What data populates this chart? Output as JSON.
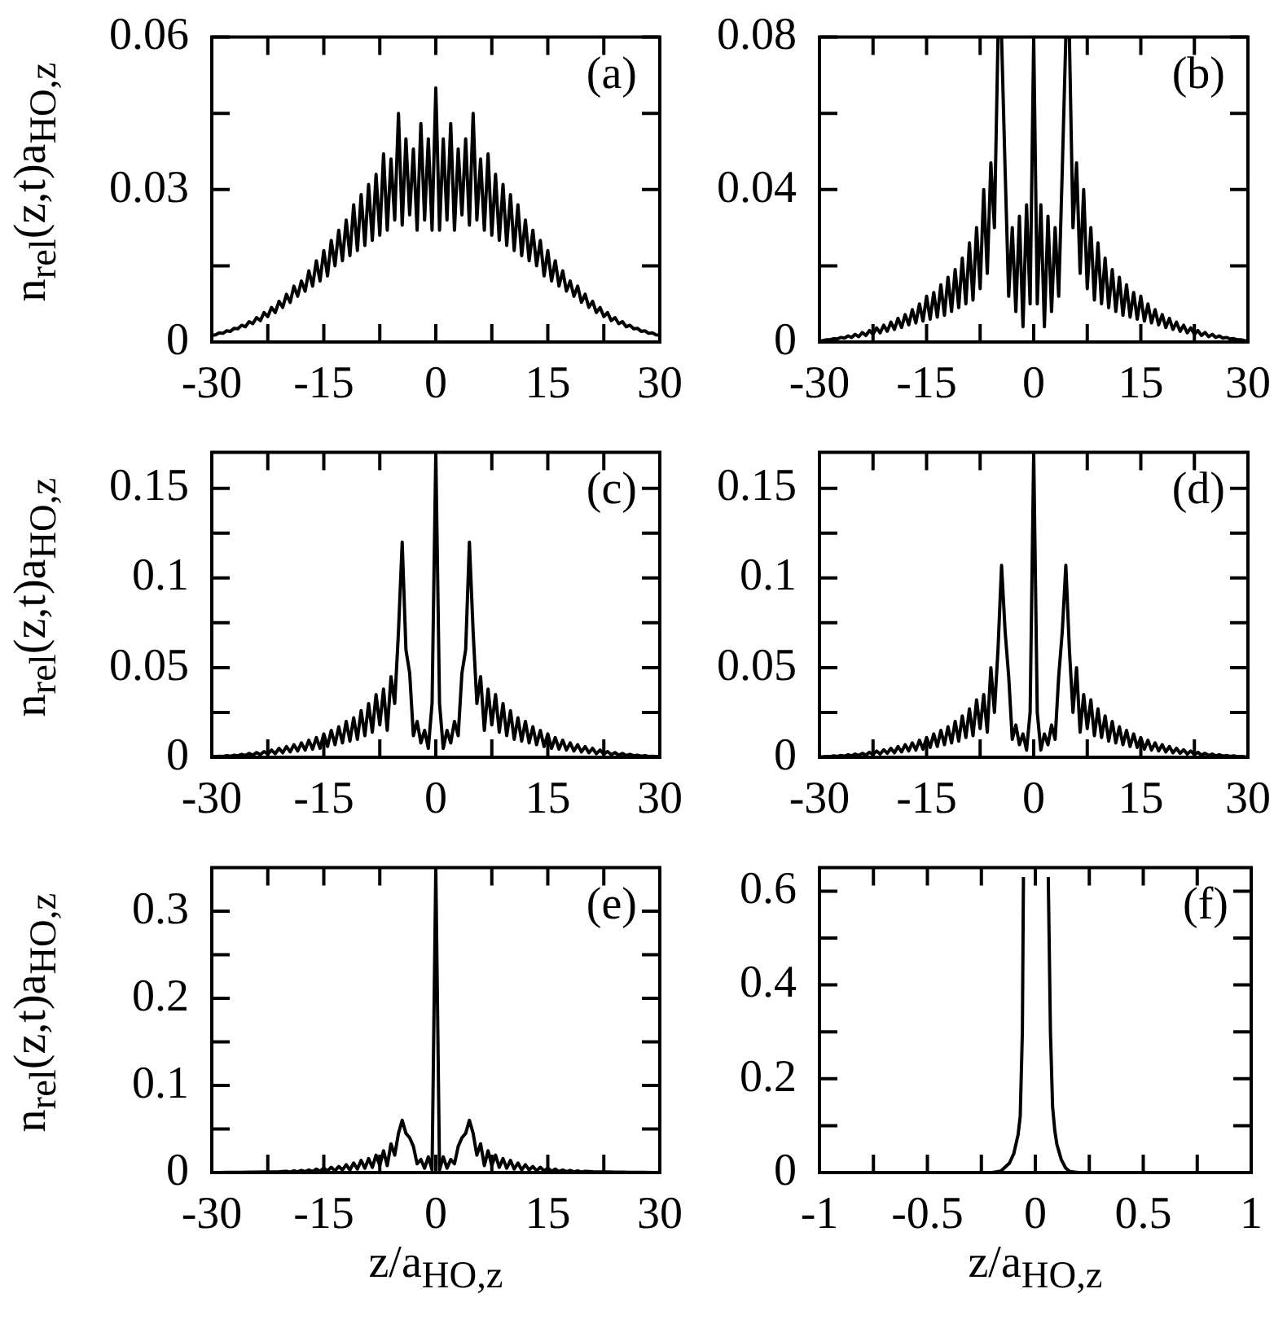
{
  "chart_data": [
    {
      "type": "line",
      "color": "#000000",
      "ylabel": "n$_{rel}$(z,t)a$_{HO,z}$",
      "annotations": [
        "(a)"
      ],
      "xlim": [
        -30,
        30
      ],
      "ylim": [
        0,
        0.06
      ],
      "xticks": [
        -30,
        {
          "value": -22.5,
          "label": null
        },
        -15,
        {
          "value": -7.5,
          "label": null
        },
        0,
        {
          "value": 7.5,
          "label": null
        },
        15,
        {
          "value": 22.5,
          "label": null
        },
        30
      ],
      "yticks": [
        0,
        {
          "value": 0.015,
          "label": null
        },
        0.03,
        {
          "value": 0.045,
          "label": null
        },
        0.06
      ],
      "x": [
        -30,
        -29.5,
        -29,
        -28.5,
        -28,
        -27.5,
        -27,
        -26.5,
        -26,
        -25.5,
        -25,
        -24.5,
        -24,
        -23.5,
        -23,
        -22.5,
        -22,
        -21.5,
        -21,
        -20.5,
        -20,
        -19.5,
        -19,
        -18.5,
        -18,
        -17.5,
        -17,
        -16.5,
        -16,
        -15.5,
        -15,
        -14.5,
        -14,
        -13.5,
        -13,
        -12.5,
        -12,
        -11.5,
        -11,
        -10.5,
        -10,
        -9.5,
        -9,
        -8.5,
        -8,
        -7.5,
        -7,
        -6.5,
        -6,
        -5.5,
        -5,
        -4.5,
        -4,
        -3.5,
        -3,
        -2.5,
        -2,
        -1.5,
        -1,
        -0.5,
        0,
        0.5,
        1,
        1.5,
        2,
        2.5,
        3,
        3.5,
        4,
        4.5,
        5,
        5.5,
        6,
        6.5,
        7,
        7.5,
        8,
        8.5,
        9,
        9.5,
        10,
        10.5,
        11,
        11.5,
        12,
        12.5,
        13,
        13.5,
        14,
        14.5,
        15,
        15.5,
        16,
        16.5,
        17,
        17.5,
        18,
        18.5,
        19,
        19.5,
        20,
        20.5,
        21,
        21.5,
        22,
        22.5,
        23,
        23.5,
        24,
        24.5,
        25,
        25.5,
        26,
        26.5,
        27,
        27.5,
        28,
        28.5,
        29,
        29.5,
        30
      ],
      "values": [
        0.0013,
        0.0014,
        0.0018,
        0.0017,
        0.0022,
        0.0021,
        0.0027,
        0.0026,
        0.0033,
        0.003,
        0.004,
        0.0036,
        0.0048,
        0.0042,
        0.0058,
        0.005,
        0.0068,
        0.0058,
        0.008,
        0.0068,
        0.0094,
        0.0078,
        0.011,
        0.009,
        0.012,
        0.01,
        0.014,
        0.011,
        0.016,
        0.012,
        0.018,
        0.013,
        0.02,
        0.015,
        0.022,
        0.016,
        0.024,
        0.017,
        0.027,
        0.018,
        0.029,
        0.019,
        0.031,
        0.02,
        0.033,
        0.021,
        0.037,
        0.022,
        0.036,
        0.024,
        0.045,
        0.023,
        0.04,
        0.025,
        0.038,
        0.022,
        0.043,
        0.024,
        0.04,
        0.022,
        0.05,
        0.022,
        0.04,
        0.024,
        0.043,
        0.022,
        0.038,
        0.025,
        0.04,
        0.023,
        0.045,
        0.024,
        0.036,
        0.022,
        0.037,
        0.021,
        0.033,
        0.02,
        0.031,
        0.019,
        0.029,
        0.018,
        0.027,
        0.017,
        0.024,
        0.016,
        0.022,
        0.015,
        0.02,
        0.013,
        0.018,
        0.012,
        0.016,
        0.011,
        0.014,
        0.01,
        0.012,
        0.009,
        0.011,
        0.0078,
        0.0094,
        0.0068,
        0.008,
        0.0058,
        0.0068,
        0.005,
        0.0058,
        0.0042,
        0.0048,
        0.0036,
        0.004,
        0.003,
        0.0033,
        0.0026,
        0.0027,
        0.0021,
        0.0022,
        0.0017,
        0.0018,
        0.0014,
        0.0013
      ]
    },
    {
      "type": "line",
      "color": "#000000",
      "annotations": [
        "(b)"
      ],
      "xlim": [
        -30,
        30
      ],
      "ylim": [
        0,
        0.08
      ],
      "xticks": [
        -30,
        {
          "value": -22.5,
          "label": null
        },
        -15,
        {
          "value": -7.5,
          "label": null
        },
        0,
        {
          "value": 7.5,
          "label": null
        },
        15,
        {
          "value": 22.5,
          "label": null
        },
        30
      ],
      "yticks": [
        0,
        {
          "value": 0.02,
          "label": null
        },
        0.04,
        {
          "value": 0.06,
          "label": null
        },
        0.08
      ],
      "x": [
        -30,
        -29.5,
        -29,
        -28.5,
        -28,
        -27.5,
        -27,
        -26.5,
        -26,
        -25.5,
        -25,
        -24.5,
        -24,
        -23.5,
        -23,
        -22.5,
        -22,
        -21.5,
        -21,
        -20.5,
        -20,
        -19.5,
        -19,
        -18.5,
        -18,
        -17.5,
        -17,
        -16.5,
        -16,
        -15.5,
        -15,
        -14.5,
        -14,
        -13.5,
        -13,
        -12.5,
        -12,
        -11.5,
        -11,
        -10.5,
        -10,
        -9.5,
        -9,
        -8.5,
        -8,
        -7.5,
        -7,
        -6.5,
        -6,
        -5.5,
        -5,
        -4.5,
        -4,
        -3.5,
        -3,
        -2.5,
        -2,
        -1.5,
        -1,
        -0.5,
        0,
        0.5,
        1,
        1.5,
        2,
        2.5,
        3,
        3.5,
        4,
        4.5,
        5,
        5.5,
        6,
        6.5,
        7,
        7.5,
        8,
        8.5,
        9,
        9.5,
        10,
        10.5,
        11,
        11.5,
        12,
        12.5,
        13,
        13.5,
        14,
        14.5,
        15,
        15.5,
        16,
        16.5,
        17,
        17.5,
        18,
        18.5,
        19,
        19.5,
        20,
        20.5,
        21,
        21.5,
        22,
        22.5,
        23,
        23.5,
        24,
        24.5,
        25,
        25.5,
        26,
        26.5,
        27,
        27.5,
        28,
        28.5,
        29,
        29.5,
        30
      ],
      "values": [
        0.0003,
        0.0004,
        0.0006,
        0.0006,
        0.0009,
        0.0008,
        0.0012,
        0.001,
        0.0016,
        0.0012,
        0.002,
        0.0014,
        0.0025,
        0.0017,
        0.003,
        0.002,
        0.0037,
        0.0024,
        0.0044,
        0.0028,
        0.0052,
        0.0033,
        0.0062,
        0.0038,
        0.0072,
        0.0045,
        0.0085,
        0.005,
        0.01,
        0.0055,
        0.012,
        0.006,
        0.013,
        0.0065,
        0.015,
        0.007,
        0.017,
        0.008,
        0.019,
        0.009,
        0.022,
        0.01,
        0.026,
        0.011,
        0.03,
        0.014,
        0.04,
        0.018,
        0.047,
        0.03,
        0.08,
        0.08,
        0.045,
        0.012,
        0.03,
        0.008,
        0.033,
        0.004,
        0.036,
        0.01,
        0.08,
        0.01,
        0.036,
        0.004,
        0.033,
        0.008,
        0.03,
        0.012,
        0.045,
        0.08,
        0.08,
        0.03,
        0.047,
        0.018,
        0.04,
        0.014,
        0.03,
        0.011,
        0.026,
        0.01,
        0.022,
        0.009,
        0.019,
        0.008,
        0.017,
        0.007,
        0.015,
        0.0065,
        0.013,
        0.006,
        0.012,
        0.0055,
        0.01,
        0.005,
        0.0085,
        0.0045,
        0.0072,
        0.0038,
        0.0062,
        0.0033,
        0.0052,
        0.0028,
        0.0044,
        0.0024,
        0.0037,
        0.002,
        0.003,
        0.0017,
        0.0025,
        0.0014,
        0.002,
        0.0012,
        0.0016,
        0.001,
        0.0012,
        0.0008,
        0.0009,
        0.0006,
        0.0006,
        0.0004,
        0.0003
      ]
    },
    {
      "type": "line",
      "color": "#000000",
      "ylabel": "n$_{rel}$(z,t)a$_{HO,z}$",
      "annotations": [
        "(c)"
      ],
      "xlim": [
        -30,
        30
      ],
      "ylim": [
        0,
        0.17
      ],
      "xticks": [
        -30,
        {
          "value": -22.5,
          "label": null
        },
        -15,
        {
          "value": -7.5,
          "label": null
        },
        0,
        {
          "value": 7.5,
          "label": null
        },
        15,
        {
          "value": 22.5,
          "label": null
        },
        30
      ],
      "yticks": [
        0,
        {
          "value": 0.025,
          "label": null
        },
        0.05,
        {
          "value": 0.075,
          "label": null
        },
        0.1,
        {
          "value": 0.125,
          "label": null
        },
        0.15
      ],
      "x": [
        -30,
        -29.5,
        -29,
        -28.5,
        -28,
        -27.5,
        -27,
        -26.5,
        -26,
        -25.5,
        -25,
        -24.5,
        -24,
        -23.5,
        -23,
        -22.5,
        -22,
        -21.5,
        -21,
        -20.5,
        -20,
        -19.5,
        -19,
        -18.5,
        -18,
        -17.5,
        -17,
        -16.5,
        -16,
        -15.5,
        -15,
        -14.5,
        -14,
        -13.5,
        -13,
        -12.5,
        -12,
        -11.5,
        -11,
        -10.5,
        -10,
        -9.5,
        -9,
        -8.5,
        -8,
        -7.5,
        -7,
        -6.5,
        -6,
        -5.5,
        -5,
        -4.5,
        -4,
        -3.5,
        -3,
        -2.5,
        -2,
        -1.5,
        -1,
        -0.5,
        0,
        0.5,
        1,
        1.5,
        2,
        2.5,
        3,
        3.5,
        4,
        4.5,
        5,
        5.5,
        6,
        6.5,
        7,
        7.5,
        8,
        8.5,
        9,
        9.5,
        10,
        10.5,
        11,
        11.5,
        12,
        12.5,
        13,
        13.5,
        14,
        14.5,
        15,
        15.5,
        16,
        16.5,
        17,
        17.5,
        18,
        18.5,
        19,
        19.5,
        20,
        20.5,
        21,
        21.5,
        22,
        22.5,
        23,
        23.5,
        24,
        24.5,
        25,
        25.5,
        26,
        26.5,
        27,
        27.5,
        28,
        28.5,
        29,
        29.5,
        30
      ],
      "values": [
        0.0003,
        0.0004,
        0.0006,
        0.0005,
        0.0009,
        0.0006,
        0.0012,
        0.0008,
        0.0016,
        0.001,
        0.0021,
        0.0012,
        0.0026,
        0.0015,
        0.0032,
        0.0018,
        0.004,
        0.002,
        0.005,
        0.0025,
        0.006,
        0.003,
        0.007,
        0.0035,
        0.008,
        0.004,
        0.0095,
        0.0045,
        0.011,
        0.005,
        0.013,
        0.006,
        0.015,
        0.007,
        0.017,
        0.008,
        0.02,
        0.009,
        0.022,
        0.01,
        0.026,
        0.012,
        0.03,
        0.014,
        0.035,
        0.018,
        0.038,
        0.015,
        0.045,
        0.03,
        0.07,
        0.12,
        0.06,
        0.047,
        0.012,
        0.02,
        0.008,
        0.015,
        0.005,
        0.03,
        0.17,
        0.03,
        0.005,
        0.015,
        0.008,
        0.02,
        0.012,
        0.047,
        0.06,
        0.12,
        0.07,
        0.03,
        0.045,
        0.015,
        0.038,
        0.018,
        0.035,
        0.014,
        0.03,
        0.012,
        0.026,
        0.01,
        0.022,
        0.009,
        0.02,
        0.008,
        0.017,
        0.007,
        0.015,
        0.006,
        0.013,
        0.005,
        0.011,
        0.0045,
        0.0095,
        0.004,
        0.008,
        0.0035,
        0.007,
        0.003,
        0.006,
        0.0025,
        0.005,
        0.002,
        0.004,
        0.0018,
        0.0032,
        0.0015,
        0.0026,
        0.0012,
        0.0021,
        0.001,
        0.0016,
        0.0008,
        0.0012,
        0.0006,
        0.0009,
        0.0005,
        0.0006,
        0.0004,
        0.0003
      ]
    },
    {
      "type": "line",
      "color": "#000000",
      "annotations": [
        "(d)"
      ],
      "xlim": [
        -30,
        30
      ],
      "ylim": [
        0,
        0.17
      ],
      "xticks": [
        -30,
        {
          "value": -22.5,
          "label": null
        },
        -15,
        {
          "value": -7.5,
          "label": null
        },
        0,
        {
          "value": 7.5,
          "label": null
        },
        15,
        {
          "value": 22.5,
          "label": null
        },
        30
      ],
      "yticks": [
        0,
        {
          "value": 0.025,
          "label": null
        },
        0.05,
        {
          "value": 0.075,
          "label": null
        },
        0.1,
        {
          "value": 0.125,
          "label": null
        },
        0.15
      ],
      "x": [
        -30,
        -29.5,
        -29,
        -28.5,
        -28,
        -27.5,
        -27,
        -26.5,
        -26,
        -25.5,
        -25,
        -24.5,
        -24,
        -23.5,
        -23,
        -22.5,
        -22,
        -21.5,
        -21,
        -20.5,
        -20,
        -19.5,
        -19,
        -18.5,
        -18,
        -17.5,
        -17,
        -16.5,
        -16,
        -15.5,
        -15,
        -14.5,
        -14,
        -13.5,
        -13,
        -12.5,
        -12,
        -11.5,
        -11,
        -10.5,
        -10,
        -9.5,
        -9,
        -8.5,
        -8,
        -7.5,
        -7,
        -6.5,
        -6,
        -5.5,
        -5,
        -4.5,
        -4,
        -3.5,
        -3,
        -2.5,
        -2,
        -1.5,
        -1,
        -0.5,
        0,
        0.5,
        1,
        1.5,
        2,
        2.5,
        3,
        3.5,
        4,
        4.5,
        5,
        5.5,
        6,
        6.5,
        7,
        7.5,
        8,
        8.5,
        9,
        9.5,
        10,
        10.5,
        11,
        11.5,
        12,
        12.5,
        13,
        13.5,
        14,
        14.5,
        15,
        15.5,
        16,
        16.5,
        17,
        17.5,
        18,
        18.5,
        19,
        19.5,
        20,
        20.5,
        21,
        21.5,
        22,
        22.5,
        23,
        23.5,
        24,
        24.5,
        25,
        25.5,
        26,
        26.5,
        27,
        27.5,
        28,
        28.5,
        29,
        29.5,
        30
      ],
      "values": [
        0.0002,
        0.0003,
        0.0005,
        0.0004,
        0.0008,
        0.0005,
        0.001,
        0.0006,
        0.0014,
        0.0008,
        0.0018,
        0.001,
        0.0022,
        0.0012,
        0.0028,
        0.0015,
        0.0035,
        0.0018,
        0.0042,
        0.0022,
        0.005,
        0.0025,
        0.006,
        0.003,
        0.007,
        0.0035,
        0.008,
        0.004,
        0.0095,
        0.0045,
        0.011,
        0.0055,
        0.013,
        0.006,
        0.015,
        0.007,
        0.017,
        0.008,
        0.02,
        0.009,
        0.023,
        0.011,
        0.027,
        0.012,
        0.032,
        0.016,
        0.035,
        0.014,
        0.05,
        0.025,
        0.06,
        0.107,
        0.07,
        0.045,
        0.01,
        0.018,
        0.007,
        0.013,
        0.004,
        0.025,
        0.17,
        0.025,
        0.004,
        0.013,
        0.007,
        0.018,
        0.01,
        0.045,
        0.07,
        0.107,
        0.06,
        0.025,
        0.05,
        0.014,
        0.035,
        0.016,
        0.032,
        0.012,
        0.027,
        0.011,
        0.023,
        0.009,
        0.02,
        0.008,
        0.017,
        0.007,
        0.015,
        0.006,
        0.013,
        0.0055,
        0.011,
        0.0045,
        0.0095,
        0.004,
        0.008,
        0.0035,
        0.007,
        0.003,
        0.006,
        0.0025,
        0.005,
        0.0022,
        0.0042,
        0.0018,
        0.0035,
        0.0015,
        0.0028,
        0.0012,
        0.0022,
        0.001,
        0.0018,
        0.0008,
        0.0014,
        0.0006,
        0.001,
        0.0005,
        0.0008,
        0.0004,
        0.0005,
        0.0003,
        0.0002
      ]
    },
    {
      "type": "line",
      "color": "#000000",
      "ylabel": "n$_{rel}$(z,t)a$_{HO,z}$",
      "xlabel": "z/a$_{HO,z}$",
      "annotations": [
        "(e)"
      ],
      "xlim": [
        -30,
        30
      ],
      "ylim": [
        0,
        0.35
      ],
      "xticks": [
        -30,
        {
          "value": -22.5,
          "label": null
        },
        -15,
        {
          "value": -7.5,
          "label": null
        },
        0,
        {
          "value": 7.5,
          "label": null
        },
        15,
        {
          "value": 22.5,
          "label": null
        },
        30
      ],
      "yticks": [
        0,
        {
          "value": 0.05,
          "label": null
        },
        0.1,
        {
          "value": 0.15,
          "label": null
        },
        0.2,
        {
          "value": 0.25,
          "label": null
        },
        0.3
      ],
      "x": [
        -30,
        -29,
        -28,
        -27,
        -26,
        -25,
        -24,
        -23,
        -22,
        -21,
        -20,
        -19.5,
        -19,
        -18.5,
        -18,
        -17.5,
        -17,
        -16.5,
        -16,
        -15.5,
        -15,
        -14.5,
        -14,
        -13.5,
        -13,
        -12.5,
        -12,
        -11.5,
        -11,
        -10.5,
        -10,
        -9.5,
        -9,
        -8.5,
        -8,
        -7.5,
        -7,
        -6.5,
        -6,
        -5.5,
        -5,
        -4.5,
        -4,
        -3.5,
        -3,
        -2.5,
        -2,
        -1.5,
        -1,
        -0.5,
        0,
        0.5,
        1,
        1.5,
        2,
        2.5,
        3,
        3.5,
        4,
        4.5,
        5,
        5.5,
        6,
        6.5,
        7,
        7.5,
        8,
        8.5,
        9,
        9.5,
        10,
        10.5,
        11,
        11.5,
        12,
        12.5,
        13,
        13.5,
        14,
        14.5,
        15,
        15.5,
        16,
        16.5,
        17,
        17.5,
        18,
        18.5,
        19,
        19.5,
        20,
        21,
        22,
        23,
        24,
        25,
        26,
        27,
        28,
        29,
        30
      ],
      "values": [
        0.0001,
        0.0001,
        0.0002,
        0.0002,
        0.0003,
        0.0004,
        0.0005,
        0.0006,
        0.0008,
        0.001,
        0.0015,
        0.0006,
        0.002,
        0.0008,
        0.0025,
        0.001,
        0.003,
        0.001,
        0.004,
        0.0015,
        0.005,
        0.002,
        0.006,
        0.002,
        0.007,
        0.003,
        0.009,
        0.003,
        0.011,
        0.004,
        0.014,
        0.005,
        0.016,
        0.006,
        0.02,
        0.008,
        0.025,
        0.008,
        0.033,
        0.02,
        0.045,
        0.06,
        0.045,
        0.04,
        0.03,
        0.01,
        0.015,
        0.005,
        0.018,
        0.003,
        0.35,
        0.003,
        0.018,
        0.005,
        0.015,
        0.01,
        0.03,
        0.04,
        0.045,
        0.06,
        0.045,
        0.02,
        0.033,
        0.008,
        0.025,
        0.008,
        0.02,
        0.006,
        0.016,
        0.005,
        0.014,
        0.004,
        0.011,
        0.003,
        0.009,
        0.003,
        0.007,
        0.002,
        0.006,
        0.002,
        0.005,
        0.0015,
        0.004,
        0.001,
        0.003,
        0.001,
        0.0025,
        0.0008,
        0.002,
        0.0006,
        0.0015,
        0.001,
        0.0008,
        0.0006,
        0.0005,
        0.0004,
        0.0003,
        0.0002,
        0.0002,
        0.0001,
        0.0001
      ]
    },
    {
      "type": "line",
      "color": "#000000",
      "xlabel": "z/a$_{HO,z}$",
      "annotations": [
        "(f)"
      ],
      "xlim": [
        -1,
        1
      ],
      "ylim": [
        0,
        0.65
      ],
      "xticks": [
        -1,
        {
          "value": -0.75,
          "label": null
        },
        -0.5,
        {
          "value": -0.25,
          "label": null
        },
        0,
        {
          "value": 0.25,
          "label": null
        },
        0.5,
        {
          "value": 0.75,
          "label": null
        },
        1
      ],
      "yticks": [
        0,
        {
          "value": 0.1,
          "label": null
        },
        0.2,
        {
          "value": 0.3,
          "label": null
        },
        0.4,
        {
          "value": 0.5,
          "label": null
        },
        0.6
      ],
      "x": [
        -1,
        -0.5,
        -0.2,
        -0.16,
        -0.12,
        -0.1,
        -0.08,
        -0.07,
        -0.06,
        -0.055,
        0,
        0.06,
        0.07,
        0.08,
        0.09,
        0.1,
        0.12,
        0.14,
        0.16,
        0.2,
        0.5,
        1
      ],
      "values": [
        0,
        0,
        0,
        0.003,
        0.02,
        0.04,
        0.08,
        0.12,
        0.3,
        0.63,
        null,
        0.63,
        0.3,
        0.14,
        0.09,
        0.06,
        0.028,
        0.01,
        0.002,
        0,
        0,
        0
      ]
    }
  ]
}
